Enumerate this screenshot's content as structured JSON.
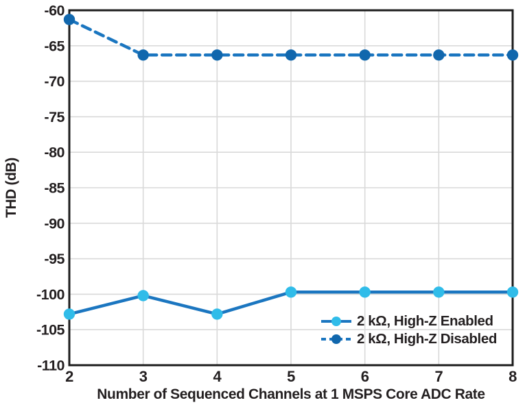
{
  "chart_data": {
    "type": "line",
    "title": "",
    "xlabel": "Number of Sequenced Channels at 1 MSPS Core ADC Rate",
    "ylabel": "THD (dB)",
    "x": [
      2,
      3,
      4,
      5,
      6,
      7,
      8
    ],
    "xlim": [
      2,
      8
    ],
    "ylim": [
      -110,
      -60
    ],
    "ytick_step": 5,
    "yticks": [
      -60,
      -65,
      -70,
      -75,
      -80,
      -85,
      -90,
      -95,
      -100,
      -105,
      -110
    ],
    "grid": true,
    "legend_position": "inside-bottom-right",
    "series": [
      {
        "name": "2 kΩ, High-Z Enabled",
        "style": "solid",
        "line_color": "#1b76c0",
        "marker_color": "#30bce9",
        "values": [
          -102.8,
          -100.2,
          -102.8,
          -99.7,
          -99.7,
          -99.7,
          -99.7
        ]
      },
      {
        "name": "2 kΩ, High-Z Disabled",
        "style": "dashed",
        "line_color": "#1b76c0",
        "marker_color": "#1167ad",
        "values": [
          -61.3,
          -66.3,
          -66.3,
          -66.3,
          -66.3,
          -66.3,
          -66.3
        ]
      }
    ],
    "colors": {
      "frame": "#1c1c1c",
      "grid": "#d9d9d9",
      "text": "#231f20",
      "background": "#ffffff"
    }
  }
}
